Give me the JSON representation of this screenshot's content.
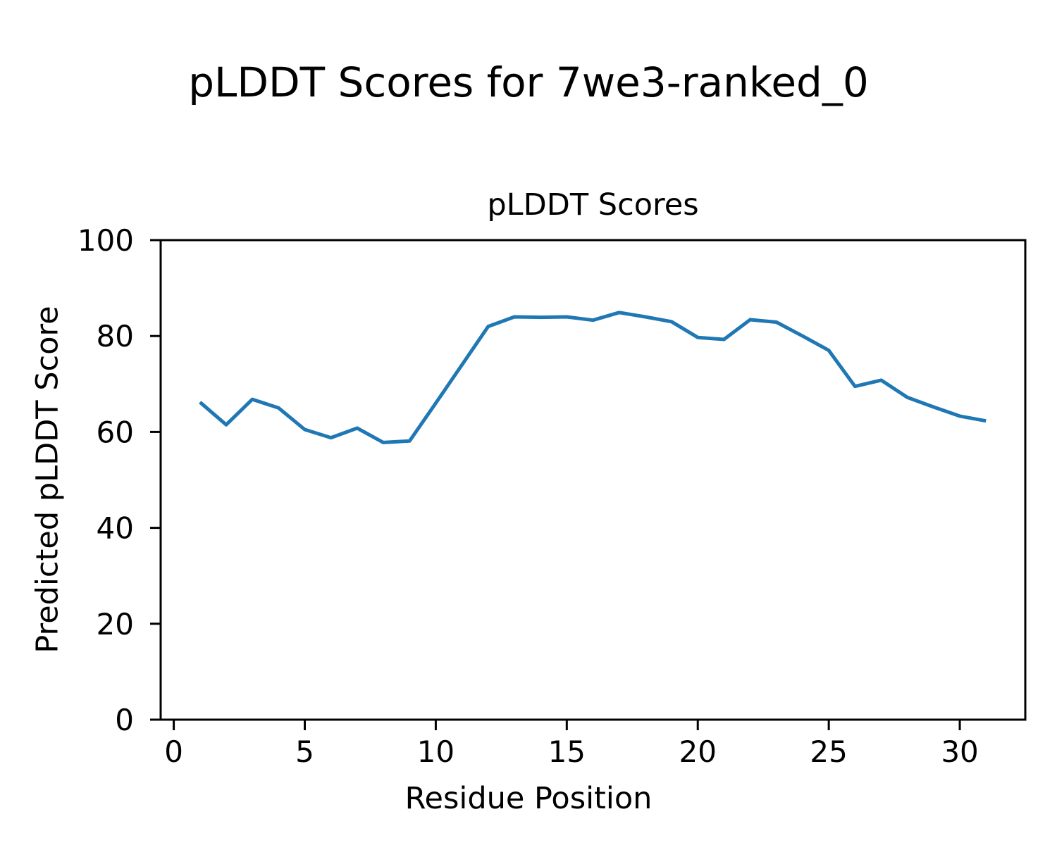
{
  "figure": {
    "suptitle": "pLDDT Scores for 7we3-ranked_0"
  },
  "chart_data": {
    "type": "line",
    "title": "pLDDT Scores",
    "xlabel": "Residue Position",
    "ylabel": "Predicted pLDDT Score",
    "x": [
      1,
      2,
      3,
      4,
      5,
      6,
      7,
      8,
      9,
      10,
      11,
      12,
      13,
      14,
      15,
      16,
      17,
      18,
      19,
      20,
      21,
      22,
      23,
      24,
      25,
      26,
      27,
      28,
      29,
      30,
      31
    ],
    "y": [
      66.2,
      61.5,
      66.8,
      65.0,
      60.5,
      58.8,
      60.8,
      57.8,
      58.1,
      66.0,
      74.0,
      82.0,
      84.0,
      83.9,
      84.0,
      83.3,
      84.9,
      84.0,
      83.0,
      79.7,
      79.3,
      83.4,
      82.9,
      80.0,
      77.0,
      69.5,
      70.8,
      67.2,
      65.2,
      63.3,
      62.3
    ],
    "xlim": [
      -0.5,
      32.5
    ],
    "ylim": [
      0,
      100
    ],
    "xticks": [
      0,
      5,
      10,
      15,
      20,
      25,
      30
    ],
    "yticks": [
      0,
      20,
      40,
      60,
      80,
      100
    ],
    "grid": false,
    "legend": null,
    "line_color": "#1f77b4",
    "axis_color": "#000000",
    "background_color": "#ffffff",
    "tick_font_size": 42,
    "label_font_size": 43,
    "title_font_size": 43,
    "suptitle_font_size": 58
  }
}
